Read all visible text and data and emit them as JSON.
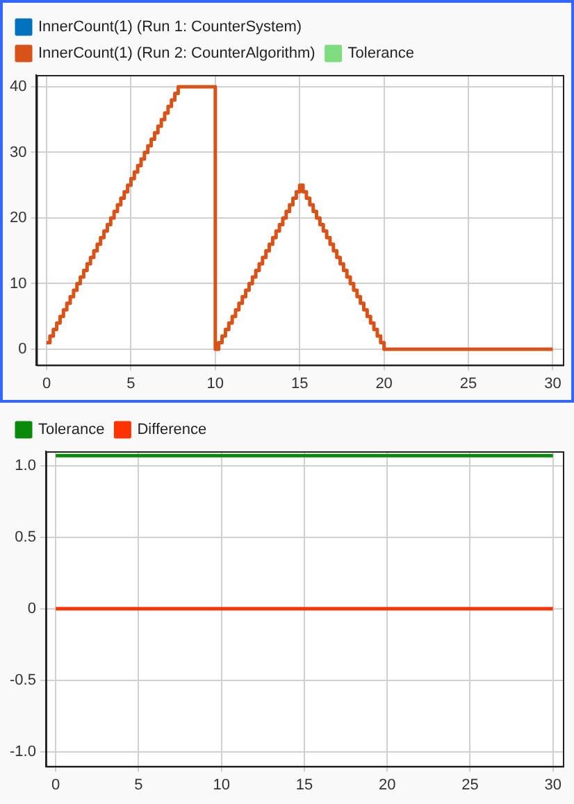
{
  "chart_data": [
    {
      "type": "step",
      "legend": "top left",
      "grid": true,
      "marker": "none",
      "line_style": "solid",
      "xlim": [
        -0.6,
        30.6
      ],
      "xticks": [
        0,
        5,
        10,
        15,
        20,
        25,
        30
      ],
      "ylim": [
        -2.4,
        41.8
      ],
      "yticks": [
        0,
        10,
        20,
        30,
        40
      ],
      "series": [
        {
          "name": "InnerCount(1) (Run 1: CounterSystem)",
          "color": "#0072bd"
        },
        {
          "name": "InnerCount(1) (Run 2: CounterAlgorithm)",
          "color": "#d95319",
          "x": [
            0,
            0.2,
            0.4,
            0.6,
            0.8,
            1,
            1.2,
            1.4,
            1.6,
            1.8,
            2,
            2.2,
            2.4,
            2.6,
            2.8,
            3,
            3.2,
            3.4,
            3.6,
            3.8,
            4,
            4.2,
            4.4,
            4.6,
            4.8,
            5,
            5.2,
            5.4,
            5.6,
            5.8,
            6,
            6.2,
            6.4,
            6.6,
            6.8,
            7,
            7.2,
            7.4,
            7.6,
            7.8,
            10,
            10.2,
            10.4,
            10.6,
            10.8,
            11,
            11.2,
            11.4,
            11.6,
            11.8,
            12,
            12.2,
            12.4,
            12.6,
            12.8,
            13,
            13.2,
            13.4,
            13.6,
            13.8,
            14,
            14.2,
            14.4,
            14.6,
            14.8,
            15,
            15.2,
            15.4,
            15.6,
            15.8,
            16,
            16.2,
            16.4,
            16.6,
            16.8,
            17,
            17.2,
            17.4,
            17.6,
            17.8,
            18,
            18.2,
            18.4,
            18.6,
            18.8,
            19,
            19.2,
            19.4,
            19.6,
            19.8,
            20,
            30
          ],
          "values": [
            1,
            2,
            3,
            4,
            5,
            6,
            7,
            8,
            9,
            10,
            11,
            12,
            13,
            14,
            15,
            16,
            17,
            18,
            19,
            20,
            21,
            22,
            23,
            24,
            25,
            26,
            27,
            28,
            29,
            30,
            31,
            32,
            33,
            34,
            35,
            36,
            37,
            38,
            39,
            40,
            0,
            1,
            2,
            3,
            4,
            5,
            6,
            7,
            8,
            9,
            10,
            11,
            12,
            13,
            14,
            15,
            16,
            17,
            18,
            19,
            20,
            21,
            22,
            23,
            24,
            25,
            24,
            23,
            22,
            21,
            20,
            19,
            18,
            17,
            16,
            15,
            14,
            13,
            12,
            11,
            10,
            9,
            8,
            7,
            6,
            5,
            4,
            3,
            2,
            1,
            0,
            0
          ]
        },
        {
          "name": "Tolerance",
          "color": "#7fdc7f"
        }
      ]
    },
    {
      "type": "line",
      "legend": "top left",
      "grid": true,
      "marker": "none",
      "line_style": "solid",
      "xlim": [
        -0.6,
        30.6
      ],
      "xticks": [
        0,
        5,
        10,
        15,
        20,
        25,
        30
      ],
      "ylim": [
        -1.1,
        1.1
      ],
      "yticks": [
        {
          "value": -1,
          "label": "-1.0"
        },
        {
          "value": -0.5,
          "label": "-0.5"
        },
        0,
        {
          "value": 0.5,
          "label": "0.5"
        },
        {
          "value": 1,
          "label": "1.0"
        }
      ],
      "series": [
        {
          "name": "Tolerance",
          "color": "#0a8a0a",
          "x": [
            0,
            30
          ],
          "values": [
            1.07,
            1.07
          ]
        },
        {
          "name": "Difference",
          "color": "#ff3300",
          "x": [
            0,
            30
          ],
          "values": [
            0,
            0
          ]
        }
      ]
    }
  ]
}
